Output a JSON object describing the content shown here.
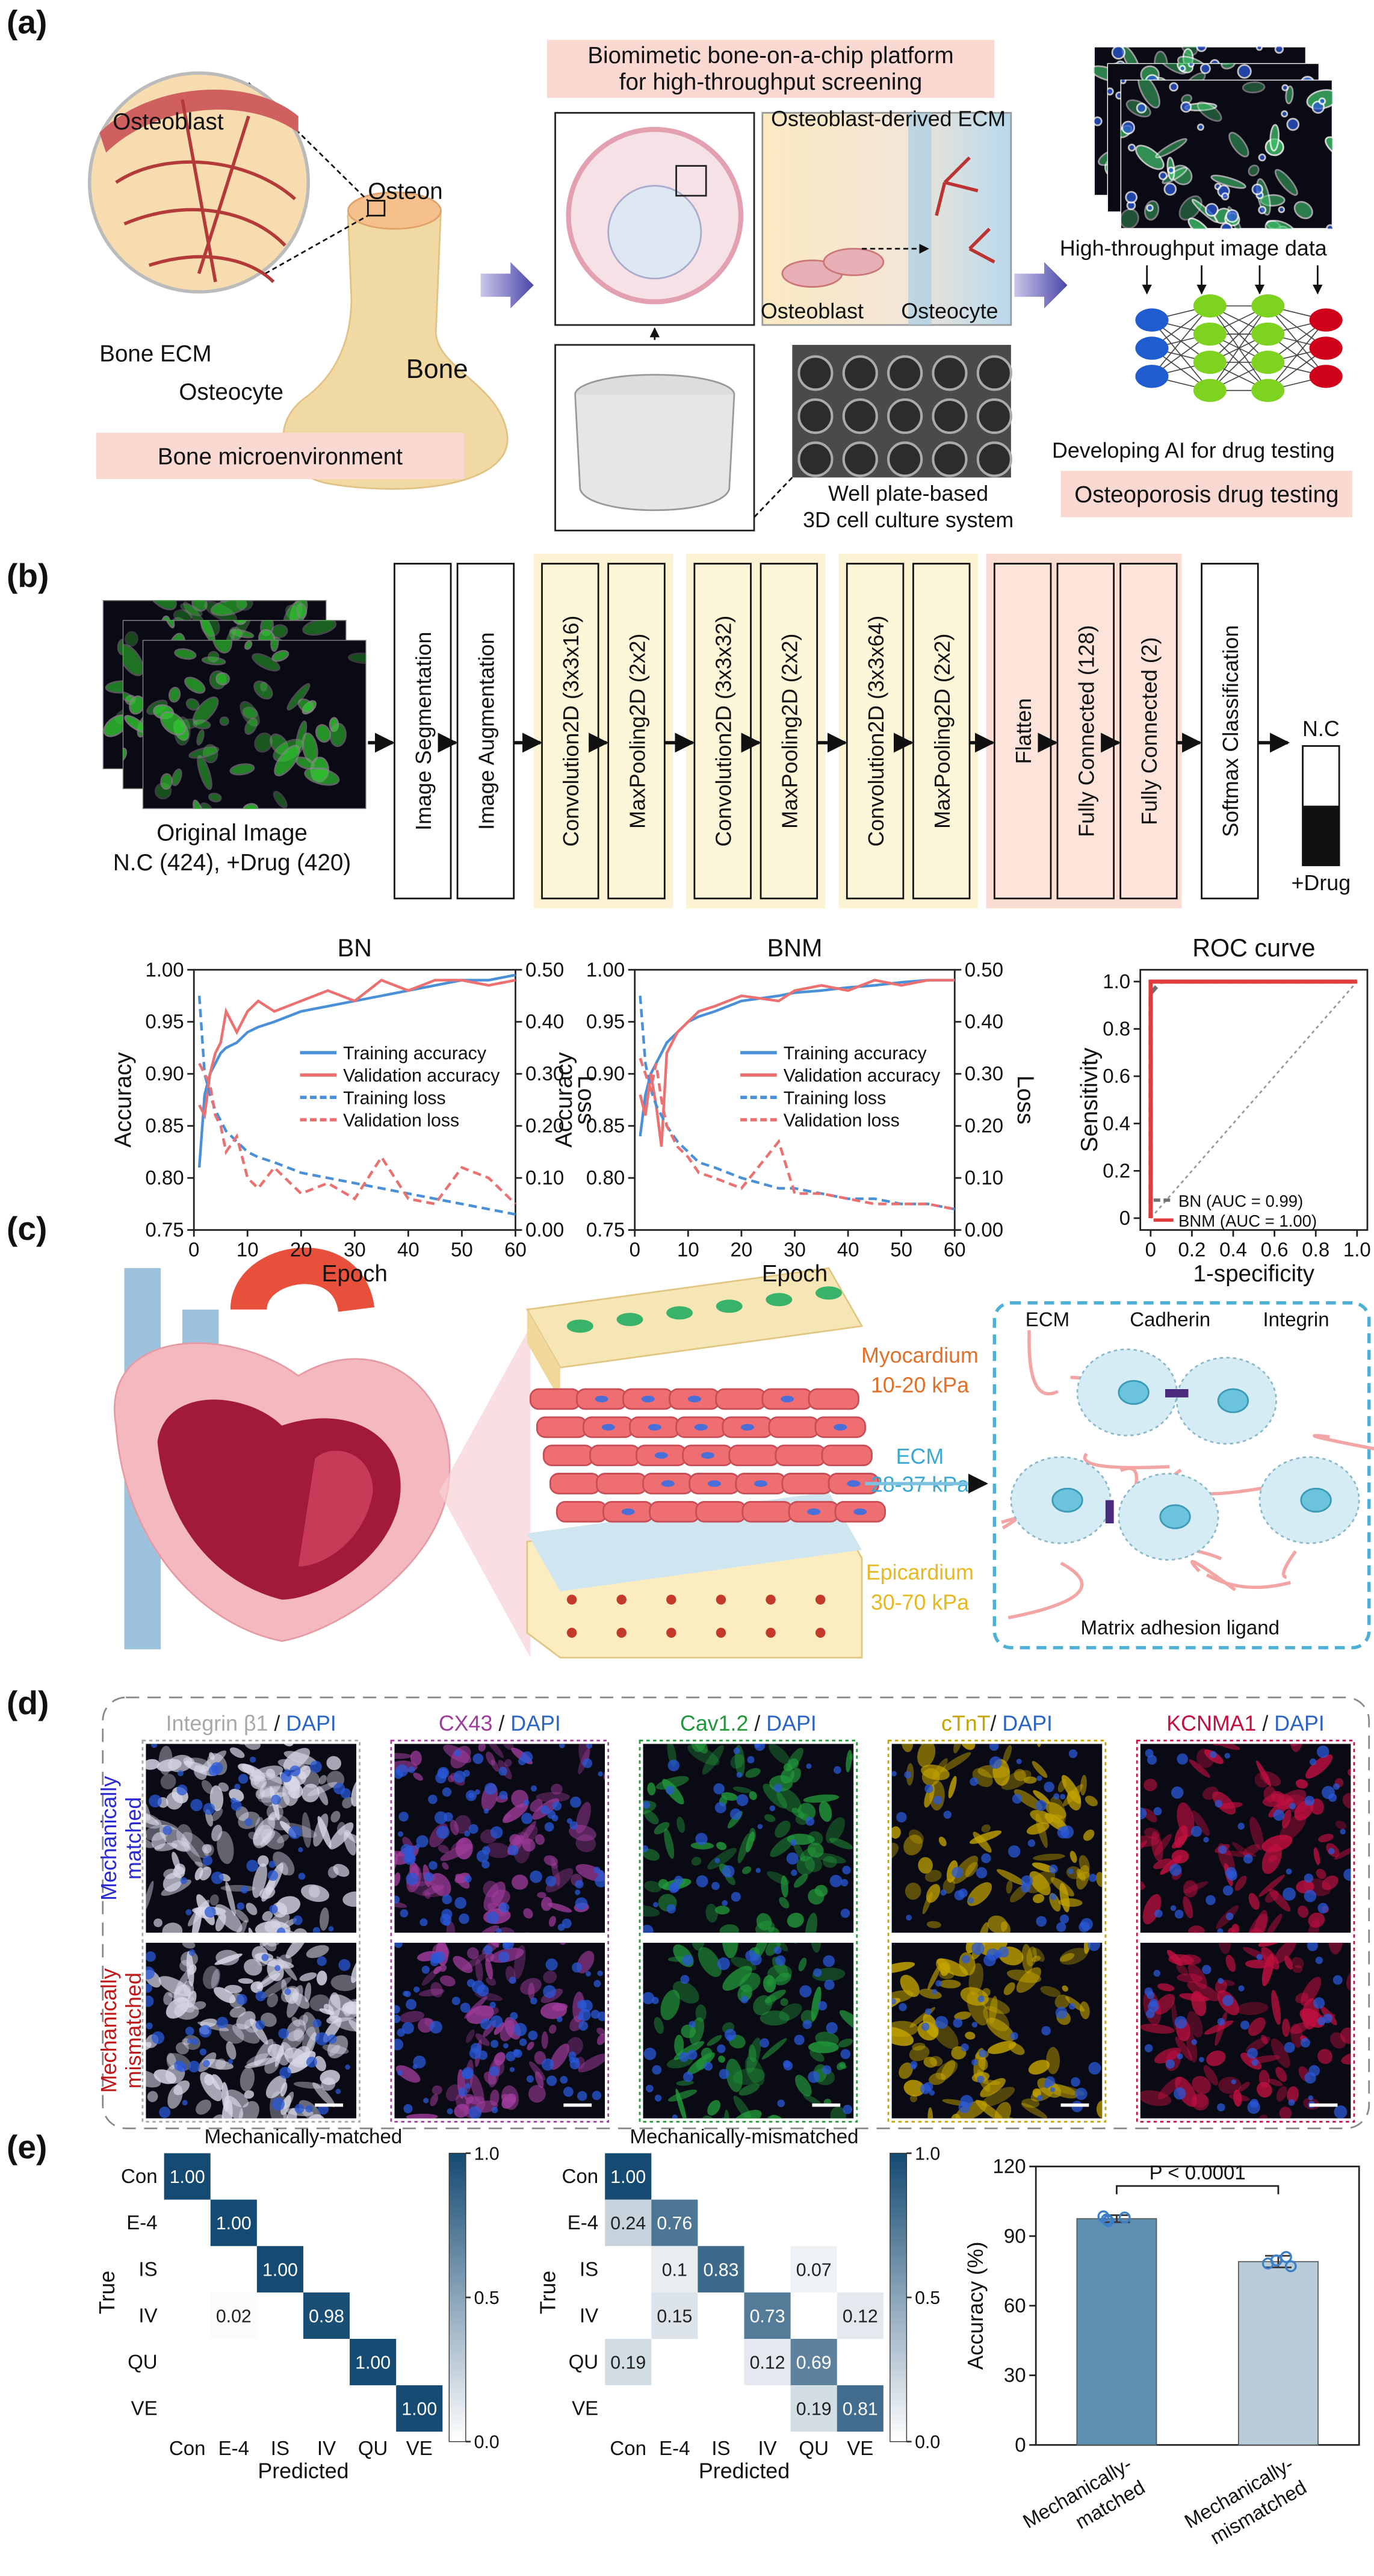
{
  "panel_labels": [
    "(a)",
    "(b)",
    "(c)",
    "(d)",
    "(e)"
  ],
  "panel_a": {
    "osteoblast": "Osteoblast",
    "osteon": "Osteon",
    "bone_ecm": "Bone ECM",
    "osteocyte": "Osteocyte",
    "bone": "Bone",
    "bone_box": "Bone microenvironment",
    "platform_title": [
      "Biomimetic bone-on-a-chip platform",
      "for high-throughput screening"
    ],
    "ecm_label": "Osteoblast-derived ECM",
    "cell_osteoblast": "Osteoblast",
    "cell_osteocyte": "Osteocyte",
    "well_plate": [
      "Well plate-based",
      "3D cell culture system"
    ],
    "image_data": "High-throughput image data",
    "ai": "Developing AI for drug testing",
    "drug_box": "Osteoporosis drug testing"
  },
  "panel_b": {
    "original_image": "Original Image",
    "counts": "N.C (424), +Drug (420)",
    "layers": [
      "Image Segmentation",
      "Image Augmentation",
      "Convolution2D (3x3x16)",
      "MaxPooling2D (2x2)",
      "Convolution2D (3x3x32)",
      "MaxPooling2D (2x2)",
      "Convolution2D (3x3x64)",
      "MaxPooling2D (2x2)",
      "Flatten",
      "Fully Connected (128)",
      "Fully Connected (2)",
      "Softmax Classification"
    ],
    "output_top": "N.C",
    "output_bottom": "+Drug"
  },
  "panel_c": {
    "myocardium": "Myocardium",
    "myocardium_kpa": "10-20 kPa",
    "ecm": "ECM",
    "ecm_kpa": "28-37 kPa",
    "epicardium": "Epicardium",
    "epicardium_kpa": "30-70 kPa",
    "box_ecm": "ECM",
    "cadherin": "Cadherin",
    "integrin": "Integrin",
    "ligand": "Matrix adhesion ligand"
  },
  "panel_d": {
    "stains": [
      {
        "marker": "Integrin β1",
        "sep": " / ",
        "counter": "DAPI",
        "color": "#a8a8a8"
      },
      {
        "marker": "CX43",
        "sep": " / ",
        "counter": "DAPI",
        "color": "#a03c9c"
      },
      {
        "marker": "Cav1.2",
        "sep": " / ",
        "counter": "DAPI",
        "color": "#22983a"
      },
      {
        "marker": "cTnT",
        "sep": "/ ",
        "counter": "DAPI",
        "color": "#c4a400"
      },
      {
        "marker": "KCNMA1",
        "sep": " / ",
        "counter": "DAPI",
        "color": "#c01040"
      }
    ],
    "counter_color": "#2a64c4",
    "rows": [
      {
        "lines": [
          "Mechanically",
          "matched"
        ],
        "color": "#2a2ad0"
      },
      {
        "lines": [
          "Mechanically",
          "mismatched"
        ],
        "color": "#c01818"
      }
    ]
  },
  "chart_data": [
    {
      "type": "line",
      "title": "BN",
      "xlabel": "Epoch",
      "ylabel": "Accuracy",
      "y2label": "Loss",
      "legend": "center right",
      "x": [
        1,
        2,
        3,
        4,
        5,
        6,
        8,
        10,
        12,
        15,
        20,
        25,
        30,
        35,
        40,
        45,
        50,
        55,
        60
      ],
      "xlim": [
        0,
        60
      ],
      "xticks": [
        0,
        10,
        20,
        30,
        40,
        50,
        60
      ],
      "ylim": [
        0.75,
        1.0
      ],
      "yticks": [
        {
          "value": 0.75,
          "label": "0.75"
        },
        {
          "value": 0.8,
          "label": "0.80"
        },
        {
          "value": 0.85,
          "label": "0.85"
        },
        {
          "value": 0.9,
          "label": "0.90"
        },
        {
          "value": 0.95,
          "label": "0.95"
        },
        {
          "value": 1.0,
          "label": "1.00"
        }
      ],
      "y2lim": [
        0,
        0.5
      ],
      "y2ticks": [
        {
          "value": 0,
          "label": "0.00"
        },
        {
          "value": 0.1,
          "label": "0.10"
        },
        {
          "value": 0.2,
          "label": "0.20"
        },
        {
          "value": 0.3,
          "label": "0.30"
        },
        {
          "value": 0.4,
          "label": "0.40"
        },
        {
          "value": 0.5,
          "label": "0.50"
        }
      ],
      "series": [
        {
          "name": "Training accuracy",
          "color": "#4a90d9",
          "style": "solid",
          "values": [
            0.81,
            0.88,
            0.9,
            0.91,
            0.92,
            0.925,
            0.93,
            0.94,
            0.945,
            0.95,
            0.96,
            0.965,
            0.97,
            0.975,
            0.98,
            0.985,
            0.99,
            0.99,
            0.995
          ]
        },
        {
          "name": "Validation accuracy",
          "color": "#ec7070",
          "style": "solid",
          "values": [
            0.87,
            0.86,
            0.9,
            0.92,
            0.93,
            0.96,
            0.94,
            0.96,
            0.97,
            0.96,
            0.97,
            0.98,
            0.97,
            0.99,
            0.98,
            0.99,
            0.99,
            0.985,
            0.99
          ]
        },
        {
          "name": "Training loss",
          "color": "#4a90d9",
          "style": "dashed",
          "axis": "y2",
          "values": [
            0.45,
            0.3,
            0.26,
            0.23,
            0.21,
            0.19,
            0.17,
            0.15,
            0.14,
            0.13,
            0.11,
            0.1,
            0.09,
            0.08,
            0.07,
            0.06,
            0.05,
            0.04,
            0.03
          ]
        },
        {
          "name": "Validation loss",
          "color": "#ec7070",
          "style": "dashed",
          "axis": "y2",
          "values": [
            0.32,
            0.3,
            0.28,
            0.22,
            0.2,
            0.15,
            0.18,
            0.1,
            0.08,
            0.12,
            0.07,
            0.09,
            0.06,
            0.14,
            0.06,
            0.05,
            0.12,
            0.1,
            0.05
          ]
        }
      ]
    },
    {
      "type": "line",
      "title": "BNM",
      "xlabel": "Epoch",
      "ylabel": "Accuracy",
      "y2label": "Loss",
      "legend": "center right",
      "x": [
        1,
        2,
        3,
        4,
        5,
        6,
        8,
        10,
        12,
        15,
        20,
        27,
        30,
        35,
        40,
        45,
        50,
        55,
        60
      ],
      "xlim": [
        0,
        60
      ],
      "xticks": [
        0,
        10,
        20,
        30,
        40,
        50,
        60
      ],
      "ylim": [
        0.75,
        1.0
      ],
      "yticks": [
        {
          "value": 0.75,
          "label": "0.75"
        },
        {
          "value": 0.8,
          "label": "0.80"
        },
        {
          "value": 0.85,
          "label": "0.85"
        },
        {
          "value": 0.9,
          "label": "0.90"
        },
        {
          "value": 0.95,
          "label": "0.95"
        },
        {
          "value": 1.0,
          "label": "1.00"
        }
      ],
      "y2lim": [
        0,
        0.5
      ],
      "y2ticks": [
        {
          "value": 0,
          "label": "0.00"
        },
        {
          "value": 0.1,
          "label": "0.10"
        },
        {
          "value": 0.2,
          "label": "0.20"
        },
        {
          "value": 0.3,
          "label": "0.30"
        },
        {
          "value": 0.4,
          "label": "0.40"
        },
        {
          "value": 0.5,
          "label": "0.50"
        }
      ],
      "series": [
        {
          "name": "Training accuracy",
          "color": "#4a90d9",
          "style": "solid",
          "values": [
            0.84,
            0.88,
            0.9,
            0.91,
            0.92,
            0.93,
            0.94,
            0.95,
            0.955,
            0.96,
            0.97,
            0.975,
            0.978,
            0.98,
            0.983,
            0.985,
            0.988,
            0.99,
            0.99
          ]
        },
        {
          "name": "Validation accuracy",
          "color": "#ec7070",
          "style": "solid",
          "values": [
            0.88,
            0.86,
            0.9,
            0.87,
            0.83,
            0.92,
            0.94,
            0.95,
            0.96,
            0.965,
            0.975,
            0.97,
            0.98,
            0.985,
            0.98,
            0.99,
            0.985,
            0.99,
            0.99
          ]
        },
        {
          "name": "Training loss",
          "color": "#4a90d9",
          "style": "dashed",
          "axis": "y2",
          "values": [
            0.45,
            0.32,
            0.27,
            0.24,
            0.22,
            0.2,
            0.17,
            0.15,
            0.13,
            0.12,
            0.1,
            0.08,
            0.08,
            0.07,
            0.06,
            0.06,
            0.05,
            0.05,
            0.04
          ]
        },
        {
          "name": "Validation loss",
          "color": "#ec7070",
          "style": "dashed",
          "axis": "y2",
          "values": [
            0.33,
            0.3,
            0.27,
            0.32,
            0.25,
            0.2,
            0.16,
            0.14,
            0.11,
            0.1,
            0.08,
            0.17,
            0.07,
            0.07,
            0.06,
            0.05,
            0.05,
            0.05,
            0.04
          ]
        }
      ]
    },
    {
      "type": "line",
      "title": "ROC curve",
      "xlabel": "1-specificity",
      "ylabel": "Sensitivity",
      "legend": "lower right",
      "xlim": [
        -0.05,
        1.05
      ],
      "xticks": [
        {
          "value": 0,
          "label": "0"
        },
        {
          "value": 0.2,
          "label": "0.2"
        },
        {
          "value": 0.4,
          "label": "0.4"
        },
        {
          "value": 0.6,
          "label": "0.6"
        },
        {
          "value": 0.8,
          "label": "0.8"
        },
        {
          "value": 1.0,
          "label": "1.0"
        }
      ],
      "ylim": [
        -0.05,
        1.05
      ],
      "yticks": [
        {
          "value": 0,
          "label": "0"
        },
        {
          "value": 0.2,
          "label": "0.2"
        },
        {
          "value": 0.4,
          "label": "0.4"
        },
        {
          "value": 0.6,
          "label": "0.6"
        },
        {
          "value": 0.8,
          "label": "0.8"
        },
        {
          "value": 1.0,
          "label": "1.0"
        }
      ],
      "series": [
        {
          "name": "BN (AUC = 0.99)",
          "color": "#707070",
          "style": "dashed",
          "x": [
            0,
            0,
            0.05,
            1
          ],
          "values": [
            0,
            0.95,
            1,
            1
          ]
        },
        {
          "name": "BNM (AUC = 1.00)",
          "color": "#e03c3c",
          "style": "solid",
          "x": [
            0,
            0,
            1
          ],
          "values": [
            0,
            1,
            1
          ]
        }
      ]
    },
    {
      "type": "heatmap",
      "title": "Mechanically-matched",
      "xlabel": "Predicted",
      "ylabel": "True",
      "x_categories": [
        "Con",
        "E-4",
        "IS",
        "IV",
        "QU",
        "VE"
      ],
      "y_categories": [
        "Con",
        "E-4",
        "IS",
        "IV",
        "QU",
        "VE"
      ],
      "values": [
        [
          1.0,
          null,
          null,
          null,
          null,
          null
        ],
        [
          null,
          1.0,
          null,
          null,
          null,
          null
        ],
        [
          null,
          null,
          1.0,
          null,
          null,
          null
        ],
        [
          null,
          0.02,
          null,
          0.98,
          null,
          null
        ],
        [
          null,
          null,
          null,
          null,
          1.0,
          null
        ],
        [
          null,
          null,
          null,
          null,
          null,
          1.0
        ]
      ],
      "value_labels": [
        [
          "1.00",
          null,
          null,
          null,
          null,
          null
        ],
        [
          null,
          "1.00",
          null,
          null,
          null,
          null
        ],
        [
          null,
          null,
          "1.00",
          null,
          null,
          null
        ],
        [
          null,
          "0.02",
          null,
          "0.98",
          null,
          null
        ],
        [
          null,
          null,
          null,
          null,
          "1.00",
          null
        ],
        [
          null,
          null,
          null,
          null,
          null,
          "1.00"
        ]
      ],
      "clim": [
        0,
        1
      ],
      "colors": [
        "#ffffff",
        "#154a72"
      ],
      "cticks": [
        {
          "value": 0,
          "label": "0.0"
        },
        {
          "value": 0.5,
          "label": "0.5"
        },
        {
          "value": 1.0,
          "label": "1.0"
        }
      ]
    },
    {
      "type": "heatmap",
      "title": "Mechanically-mismatched",
      "xlabel": "Predicted",
      "ylabel": "True",
      "x_categories": [
        "Con",
        "E-4",
        "IS",
        "IV",
        "QU",
        "VE"
      ],
      "y_categories": [
        "Con",
        "E-4",
        "IS",
        "IV",
        "QU",
        "VE"
      ],
      "values": [
        [
          1.0,
          null,
          null,
          null,
          null,
          null
        ],
        [
          0.24,
          0.76,
          null,
          null,
          null,
          null
        ],
        [
          null,
          0.1,
          0.83,
          null,
          0.07,
          null
        ],
        [
          null,
          0.15,
          null,
          0.73,
          null,
          0.12
        ],
        [
          0.19,
          null,
          null,
          0.12,
          0.69,
          null
        ],
        [
          null,
          null,
          null,
          null,
          0.19,
          0.81
        ]
      ],
      "value_labels": [
        [
          "1.00",
          null,
          null,
          null,
          null,
          null
        ],
        [
          "0.24",
          "0.76",
          null,
          null,
          null,
          null
        ],
        [
          null,
          "0.1",
          "0.83",
          null,
          "0.07",
          null
        ],
        [
          null,
          "0.15",
          null,
          "0.73",
          null,
          "0.12"
        ],
        [
          "0.19",
          null,
          null,
          "0.12",
          "0.69",
          null
        ],
        [
          null,
          null,
          null,
          null,
          "0.19",
          "0.81"
        ]
      ],
      "clim": [
        0,
        1
      ],
      "colors": [
        "#ffffff",
        "#154a72"
      ],
      "cticks": [
        {
          "value": 0,
          "label": "0.0"
        },
        {
          "value": 0.5,
          "label": "0.5"
        },
        {
          "value": 1.0,
          "label": "1.0"
        }
      ]
    },
    {
      "type": "bar",
      "ylabel": "Accuracy (%)",
      "annotation": "P < 0.0001",
      "categories": [
        [
          "Mechanically-",
          "matched"
        ],
        [
          "Mechanically-",
          "mismatched"
        ]
      ],
      "values": [
        97.5,
        79
      ],
      "errors": [
        1.5,
        2.5
      ],
      "points": [
        [
          98.5,
          96.5,
          98,
          97.2
        ],
        [
          81,
          77,
          79.5,
          78.2
        ]
      ],
      "colors": [
        "#5d8fb3",
        "#b9ccda"
      ],
      "point_color": "#3a7fc8",
      "ylim": [
        0,
        120
      ],
      "yticks": [
        0,
        30,
        60,
        90,
        120
      ]
    }
  ]
}
